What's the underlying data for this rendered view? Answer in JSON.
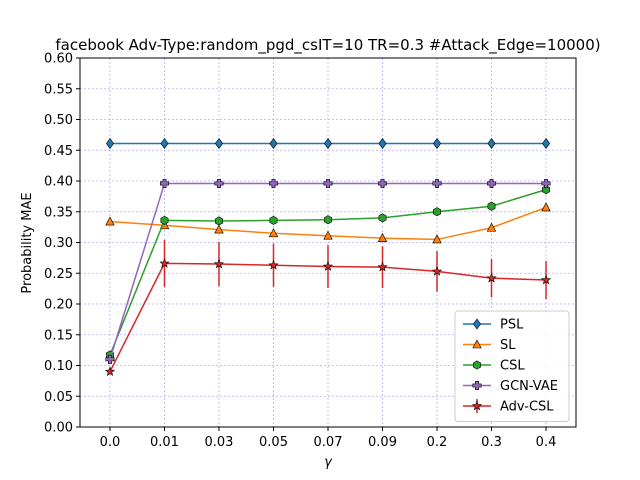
{
  "chart_data": {
    "type": "line",
    "title": "facebook Adv-Type:random_pgd_csIT=10 TR=0.3 #Attack_Edge=10000)",
    "xlabel": "γ",
    "ylabel": "Probability MAE",
    "categories": [
      "0.0",
      "0.01",
      "0.03",
      "0.05",
      "0.07",
      "0.09",
      "0.2",
      "0.3",
      "0.4"
    ],
    "ylim": [
      0.0,
      0.6
    ],
    "yticks": [
      "0.00",
      "0.05",
      "0.10",
      "0.15",
      "0.20",
      "0.25",
      "0.30",
      "0.35",
      "0.40",
      "0.45",
      "0.50",
      "0.55",
      "0.60"
    ],
    "grid": true,
    "legend_position": "lower-right",
    "series": [
      {
        "name": "PSL",
        "color": "#1f77b4",
        "marker": "diamond",
        "values": [
          0.461,
          0.461,
          0.461,
          0.461,
          0.461,
          0.461,
          0.461,
          0.461,
          0.461
        ]
      },
      {
        "name": "SL",
        "color": "#ff7f0e",
        "marker": "triangle",
        "values": [
          0.334,
          0.328,
          0.321,
          0.315,
          0.311,
          0.307,
          0.305,
          0.324,
          0.357
        ]
      },
      {
        "name": "CSL",
        "color": "#2ca02c",
        "marker": "hexagon",
        "values": [
          0.117,
          0.336,
          0.335,
          0.336,
          0.337,
          0.34,
          0.35,
          0.359,
          0.386
        ]
      },
      {
        "name": "GCN-VAE",
        "color": "#9467bd",
        "marker": "plus",
        "values": [
          0.11,
          0.396,
          0.396,
          0.396,
          0.396,
          0.396,
          0.396,
          0.396,
          0.396
        ]
      },
      {
        "name": "Adv-CSL",
        "color": "#d62728",
        "marker": "star",
        "values": [
          0.09,
          0.266,
          0.265,
          0.263,
          0.261,
          0.26,
          0.253,
          0.242,
          0.239
        ],
        "errors": [
          0.0,
          0.038,
          0.036,
          0.035,
          0.035,
          0.034,
          0.033,
          0.031,
          0.031
        ]
      }
    ]
  }
}
